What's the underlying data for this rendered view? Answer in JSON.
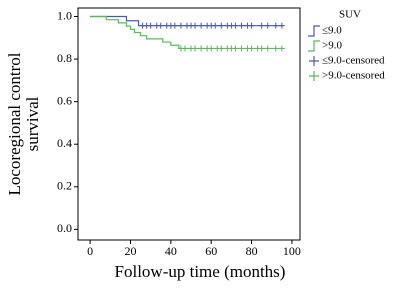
{
  "chart_data": {
    "type": "line",
    "step": "post",
    "xlabel": "Follow-up time (months)",
    "ylabel": [
      "Locoregional control",
      "survival"
    ],
    "legend_title": "SUV",
    "legend": "right",
    "xlim": [
      -6,
      104
    ],
    "xticks": [
      0,
      20,
      40,
      60,
      80,
      100
    ],
    "ylim": [
      -0.05,
      1.04
    ],
    "yticks": [
      {
        "value": 0,
        "label": "0.0"
      },
      0.2,
      0.4,
      0.6,
      0.8,
      {
        "value": 1,
        "label": "1.0"
      }
    ],
    "series": [
      {
        "name": "≤9.0",
        "color": "#4a5aa8",
        "marker": "step",
        "x": [
          0,
          18,
          24,
          96
        ],
        "values": [
          1,
          0.98,
          0.957,
          0.957
        ]
      },
      {
        "name": ">9.0",
        "color": "#5cb85c",
        "marker": "step",
        "x": [
          0,
          8,
          14,
          18,
          20,
          22,
          25,
          28,
          36,
          40,
          44,
          96
        ],
        "values": [
          1,
          0.985,
          0.97,
          0.955,
          0.94,
          0.925,
          0.91,
          0.895,
          0.88,
          0.865,
          0.85,
          0.85
        ]
      },
      {
        "name": "≤9.0-censored",
        "color": "#4a5aa8",
        "marker": "censored",
        "x": [
          26,
          28,
          30,
          33,
          35,
          38,
          40,
          42,
          45,
          48,
          50,
          52,
          55,
          58,
          60,
          62,
          65,
          68,
          70,
          72,
          75,
          78,
          80,
          85,
          88,
          92,
          95
        ],
        "values": [
          0.957,
          0.957,
          0.957,
          0.957,
          0.957,
          0.957,
          0.957,
          0.957,
          0.957,
          0.957,
          0.957,
          0.957,
          0.957,
          0.957,
          0.957,
          0.957,
          0.957,
          0.957,
          0.957,
          0.957,
          0.957,
          0.957,
          0.957,
          0.957,
          0.957,
          0.957,
          0.957
        ]
      },
      {
        "name": ">9.0-censored",
        "color": "#5cb85c",
        "marker": "censored",
        "x": [
          45,
          47,
          50,
          52,
          55,
          58,
          60,
          63,
          65,
          68,
          70,
          72,
          75,
          78,
          80,
          83,
          85,
          88,
          92,
          95
        ],
        "values": [
          0.85,
          0.85,
          0.85,
          0.85,
          0.85,
          0.85,
          0.85,
          0.85,
          0.85,
          0.85,
          0.85,
          0.85,
          0.85,
          0.85,
          0.85,
          0.85,
          0.85,
          0.85,
          0.85,
          0.85
        ]
      }
    ]
  }
}
